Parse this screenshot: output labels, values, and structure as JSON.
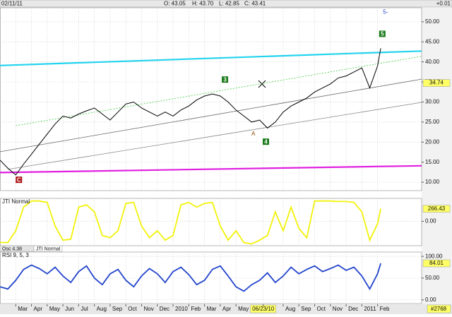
{
  "header": {
    "date": "02/11/11",
    "open": "O: 43.05",
    "high": "H: 43.70",
    "low": "L: 42.85",
    "close": "C: 43.41",
    "change": "+0.01"
  },
  "tabs": [
    "Osc 4.38",
    "JTI Normal"
  ],
  "footer": "#2768",
  "chart_data": [
    {
      "type": "line",
      "color": "#000000",
      "x": [
        -1,
        -0.5,
        0,
        0.5,
        1,
        1.5,
        2,
        2.5,
        3,
        3.5,
        4,
        4.5,
        5,
        5.5,
        6,
        6.5,
        7,
        7.5,
        8,
        8.5,
        9,
        9.5,
        10,
        10.5,
        11,
        11.5,
        12,
        12.5,
        13,
        13.5,
        14,
        14.5,
        15,
        15.5,
        16,
        16.5,
        17,
        17.5,
        18,
        18.5,
        19,
        19.5,
        20,
        20.5,
        21,
        21.5,
        22,
        22.5,
        23,
        23.2
      ],
      "values": [
        15.5,
        13.5,
        11.8,
        14.5,
        17,
        19.5,
        22,
        24.5,
        26.5,
        26,
        27,
        27.8,
        28.5,
        27,
        25.5,
        27.5,
        29.5,
        30,
        28.5,
        27.5,
        26.5,
        27.5,
        26.5,
        28,
        29,
        30.5,
        31.5,
        32,
        31.5,
        30,
        28,
        26.5,
        25,
        25.5,
        23.5,
        25,
        27.5,
        29,
        30,
        31,
        32.5,
        33.5,
        34.5,
        36,
        36.5,
        37.5,
        38.5,
        33.5,
        39,
        43.41
      ],
      "xlim": [
        -1,
        25.8
      ],
      "ylim": [
        7.9,
        53.5
      ],
      "yticks": [
        {
          "value": 10,
          "label": "10.00"
        },
        {
          "value": 15,
          "label": "15.00"
        },
        {
          "value": 20,
          "label": "20.00"
        },
        {
          "value": 25,
          "label": "25.00"
        },
        {
          "value": 30,
          "label": "30.00"
        },
        {
          "value": 35,
          "label": "35.00"
        },
        {
          "value": 40,
          "label": "40.00"
        },
        {
          "value": 45,
          "label": "45.00"
        },
        {
          "value": 50,
          "label": "50.00"
        }
      ],
      "marker": {
        "value": 34.74,
        "label": "34.74"
      },
      "trend_lines": [
        {
          "color": "#22d3ee",
          "x": [
            -1,
            25.8
          ],
          "values": [
            39.1,
            42.7
          ]
        },
        {
          "color": "#e020e0",
          "x": [
            -1,
            25.8
          ],
          "values": [
            12.4,
            14.1
          ]
        },
        {
          "color": "#888888",
          "x": [
            -0.5,
            25.8
          ],
          "values": [
            13.2,
            29.9
          ]
        },
        {
          "color": "#666666",
          "x": [
            -1,
            25.8
          ],
          "values": [
            17.6,
            35.7
          ]
        },
        {
          "color": "#44cc44",
          "x": [
            0,
            25.8
          ],
          "values": [
            24.1,
            41.4
          ]
        }
      ],
      "annotations": [
        {
          "text": "C",
          "x": 0.2,
          "y": 10.6,
          "boxed": true,
          "color": "#aa1111"
        },
        {
          "text": "3",
          "x": 13.3,
          "y": 35.6,
          "boxed": true,
          "color": "#1a7a1a"
        },
        {
          "text": "A",
          "x": 15.1,
          "y": 22,
          "boxed": false,
          "color": "#884400"
        },
        {
          "text": "4",
          "x": 15.9,
          "y": 20.1,
          "boxed": true,
          "color": "#1a7a1a"
        },
        {
          "text": "5",
          "x": 23.3,
          "y": 47,
          "boxed": true,
          "color": "#1a7a1a"
        },
        {
          "text": "5-",
          "x": 23.5,
          "y": 52.4,
          "boxed": false,
          "color": "#2244cc"
        }
      ]
    },
    {
      "type": "line",
      "title": "JTI Normal",
      "color": "#f2f20a",
      "x": [
        -1,
        -0.5,
        0,
        0.5,
        1,
        1.5,
        2,
        2.5,
        3,
        3.5,
        4,
        4.5,
        5,
        5.5,
        6,
        6.5,
        7,
        7.5,
        8,
        8.5,
        9,
        9.5,
        10,
        10.5,
        11,
        11.5,
        12,
        12.5,
        13,
        13.5,
        14,
        14.5,
        15,
        15.5,
        16,
        16.5,
        17,
        17.5,
        18,
        18.5,
        19,
        19.5,
        20,
        20.5,
        21,
        21.5,
        22,
        22.5,
        23,
        23.2
      ],
      "values": [
        -450,
        -450,
        -200,
        300,
        430,
        430,
        400,
        -100,
        -400,
        -380,
        300,
        350,
        200,
        -300,
        -350,
        -200,
        380,
        400,
        -100,
        -350,
        -200,
        -400,
        -300,
        350,
        400,
        300,
        380,
        400,
        -100,
        -400,
        -200,
        -450,
        -480,
        -400,
        -300,
        200,
        -200,
        300,
        -150,
        -350,
        430,
        430,
        430,
        420,
        420,
        400,
        200,
        -400,
        -50,
        266.43
      ],
      "last_label": "266.43",
      "xlim": [
        -1,
        25.8
      ],
      "ylim": [
        -517,
        486
      ],
      "yticks": [
        {
          "value": 0,
          "label": "0.00"
        }
      ]
    },
    {
      "type": "line",
      "title": "RSI 9, 5, 3",
      "color": "#2244cc",
      "x": [
        -1,
        -0.5,
        0,
        0.5,
        1,
        1.5,
        2,
        2.5,
        3,
        3.5,
        4,
        4.5,
        5,
        5.5,
        6,
        6.5,
        7,
        7.5,
        8,
        8.5,
        9,
        9.5,
        10,
        10.5,
        11,
        11.5,
        12,
        12.5,
        13,
        13.5,
        14,
        14.5,
        15,
        15.5,
        16,
        16.5,
        17,
        17.5,
        18,
        18.5,
        19,
        19.5,
        20,
        20.5,
        21,
        21.5,
        22,
        22.5,
        23,
        23.2
      ],
      "values": [
        30,
        25,
        45,
        70,
        80,
        72,
        60,
        75,
        55,
        40,
        65,
        78,
        50,
        35,
        60,
        70,
        45,
        30,
        55,
        72,
        60,
        40,
        65,
        75,
        58,
        35,
        45,
        70,
        78,
        55,
        30,
        20,
        35,
        45,
        62,
        40,
        55,
        75,
        60,
        70,
        78,
        65,
        72,
        80,
        68,
        75,
        55,
        25,
        60,
        84.01
      ],
      "last_label": "84.01",
      "xlim": [
        -1,
        25.8
      ],
      "ylim": [
        -8.6,
        110
      ],
      "yticks": [
        {
          "value": 0,
          "label": "0.00"
        },
        {
          "value": 50,
          "label": "50.00"
        },
        {
          "value": 100,
          "label": "100.00"
        }
      ],
      "xticks": [
        {
          "value": 0,
          "label": "Mar"
        },
        {
          "value": 1,
          "label": "Apr"
        },
        {
          "value": 2,
          "label": "May"
        },
        {
          "value": 3,
          "label": "Jun"
        },
        {
          "value": 4,
          "label": "Jul"
        },
        {
          "value": 5,
          "label": "Aug"
        },
        {
          "value": 6,
          "label": "Sep"
        },
        {
          "value": 7,
          "label": "Oct"
        },
        {
          "value": 8,
          "label": "Nov"
        },
        {
          "value": 9,
          "label": "Dec"
        },
        {
          "value": 10,
          "label": "2010"
        },
        {
          "value": 11,
          "label": "Feb"
        },
        {
          "value": 12,
          "label": "Mar"
        },
        {
          "value": 13,
          "label": "Apr"
        },
        {
          "value": 14,
          "label": "May"
        },
        {
          "value": 15.73,
          "label": "06/23/10"
        },
        {
          "value": 17,
          "label": "Aug"
        },
        {
          "value": 18,
          "label": "Sep"
        },
        {
          "value": 19,
          "label": "Oct"
        },
        {
          "value": 20,
          "label": "Nov"
        },
        {
          "value": 21,
          "label": "Dec"
        },
        {
          "value": 22,
          "label": "2011"
        },
        {
          "value": 23,
          "label": "Feb"
        }
      ]
    }
  ]
}
